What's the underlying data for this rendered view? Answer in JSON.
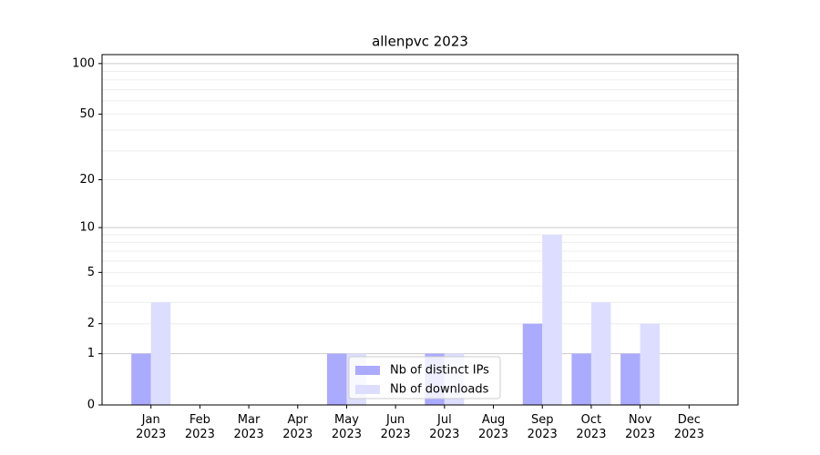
{
  "chart_data": {
    "type": "bar",
    "title": "allenpvc 2023",
    "categories": [
      "Jan\n2023",
      "Feb\n2023",
      "Mar\n2023",
      "Apr\n2023",
      "May\n2023",
      "Jun\n2023",
      "Jul\n2023",
      "Aug\n2023",
      "Sep\n2023",
      "Oct\n2023",
      "Nov\n2023",
      "Dec\n2023"
    ],
    "series": [
      {
        "name": "Nb of distinct IPs",
        "color": "#aaaaff",
        "values": [
          1,
          0,
          0,
          0,
          1,
          0,
          1,
          0,
          2,
          1,
          1,
          0
        ]
      },
      {
        "name": "Nb of downloads",
        "color": "#ddddff",
        "values": [
          3,
          0,
          0,
          0,
          1,
          0,
          1,
          0,
          9,
          3,
          2,
          0
        ]
      }
    ],
    "yscale": "log1p",
    "ylim": [
      0,
      113
    ],
    "yticks": [
      0,
      1,
      2,
      5,
      10,
      20,
      50,
      100
    ],
    "minor_yticks": [
      3,
      4,
      6,
      7,
      8,
      9,
      30,
      40,
      60,
      70,
      80,
      90
    ],
    "grid": true,
    "legend": "lower center"
  }
}
